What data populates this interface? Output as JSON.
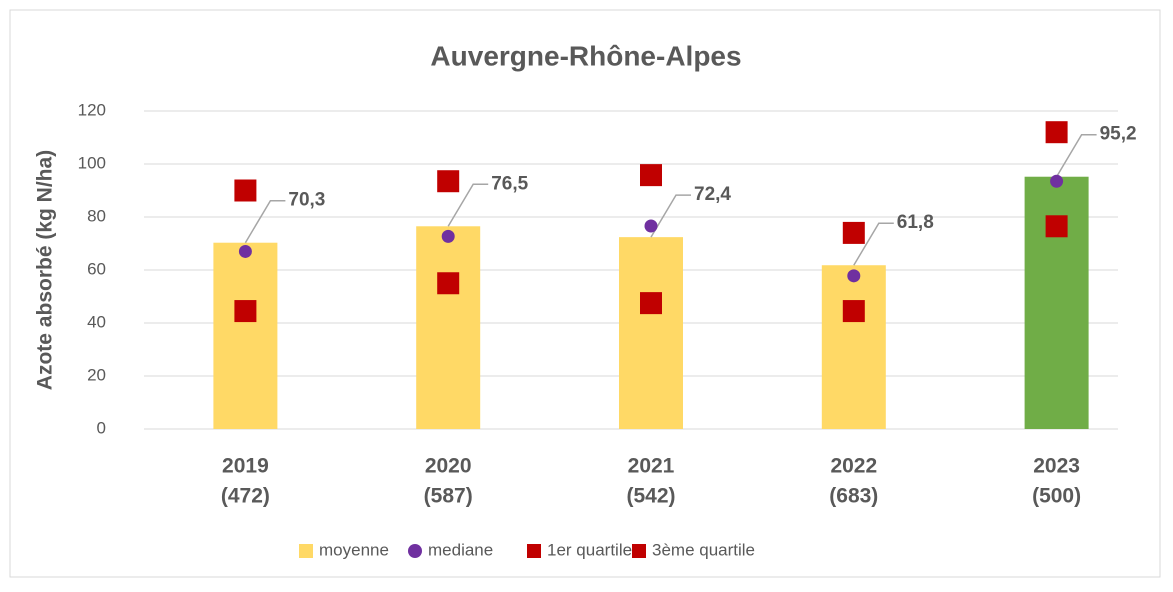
{
  "chart_data": {
    "type": "bar",
    "title": "Auvergne-Rhône-Alpes",
    "y_label": "Azote absorbé (kg N/ha)",
    "categories": [
      [
        "2019",
        "(472)"
      ],
      [
        "2020",
        "(587)"
      ],
      [
        "2021",
        "(542)"
      ],
      [
        "2022",
        "(683)"
      ],
      [
        "2023",
        "(500)"
      ]
    ],
    "series": [
      {
        "name": "moyenne",
        "type": "bar",
        "color": "#FFD966",
        "bar_colors": [
          "#FFD966",
          "#FFD966",
          "#FFD966",
          "#FFD966",
          "#70AD47"
        ],
        "values": [
          70.3,
          76.5,
          72.4,
          61.8,
          95.2
        ],
        "value_labels": [
          "70,3",
          "76,5",
          "72,4",
          "61,8",
          "95,2"
        ]
      },
      {
        "name": "mediane",
        "type": "scatter",
        "marker": "circle",
        "color": "#7030A0",
        "values": [
          67,
          72.7,
          76.6,
          57.8,
          93.5
        ]
      },
      {
        "name": "1er quartile",
        "type": "scatter",
        "marker": "square",
        "color": "#C00000",
        "values": [
          44.5,
          55,
          47.5,
          44.5,
          76.5
        ]
      },
      {
        "name": "3ème quartile",
        "type": "scatter",
        "marker": "square",
        "color": "#C00000",
        "values": [
          90,
          93.5,
          95.8,
          74,
          112
        ]
      }
    ],
    "ylim": [
      0,
      120
    ],
    "yticks": [
      0,
      20,
      40,
      60,
      80,
      100,
      120
    ],
    "grid": true,
    "legend": "bottom"
  }
}
